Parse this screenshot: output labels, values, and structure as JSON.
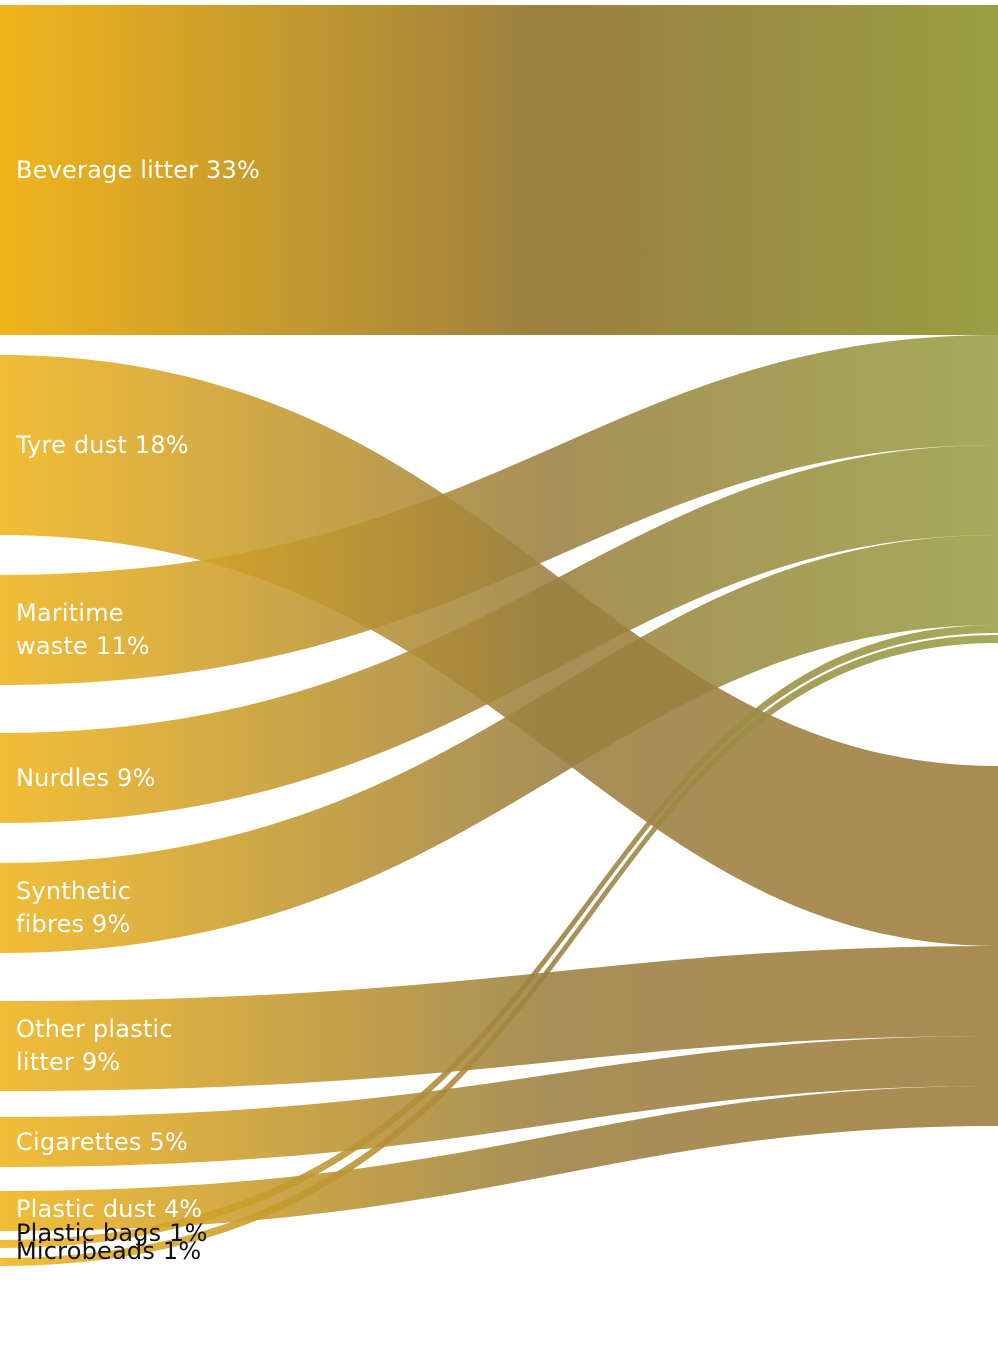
{
  "colors": {
    "source": "#f0b41c",
    "mid": "#9b8040",
    "target_top": "#9a9e44",
    "target_bottom": "#9e7b3a",
    "overlap": "#5a3208"
  },
  "chart_data": {
    "type": "sankey",
    "title": "",
    "unit": "%",
    "sources": [
      {
        "id": "beverage",
        "label": "Beverage litter 33%",
        "value": 33,
        "target": "upper"
      },
      {
        "id": "tyre",
        "label": "Tyre dust 18%",
        "value": 18,
        "target": "lower"
      },
      {
        "id": "maritime",
        "label": "Maritime\nwaste 11%",
        "value": 11,
        "target": "upper"
      },
      {
        "id": "nurdles",
        "label": "Nurdles 9%",
        "value": 9,
        "target": "upper"
      },
      {
        "id": "synthetic",
        "label": "Synthetic\nfibres 9%",
        "value": 9,
        "target": "upper"
      },
      {
        "id": "other",
        "label": "Other plastic\nlitter 9%",
        "value": 9,
        "target": "lower"
      },
      {
        "id": "cigarettes",
        "label": "Cigarettes 5%",
        "value": 5,
        "target": "lower"
      },
      {
        "id": "plastic_dust",
        "label": "Plastic dust 4%",
        "value": 4,
        "target": "lower"
      },
      {
        "id": "plastic_bags",
        "label": "Plastic bags 1%",
        "value": 1,
        "target": "upper"
      },
      {
        "id": "microbeads",
        "label": "Microbeads 1%",
        "value": 1,
        "target": "upper"
      }
    ],
    "targets": [
      {
        "id": "upper",
        "order": [
          "beverage",
          "maritime",
          "nurdles",
          "synthetic",
          "plastic_bags",
          "microbeads"
        ]
      },
      {
        "id": "lower",
        "order": [
          "tyre",
          "other",
          "cigarettes",
          "plastic_dust"
        ]
      }
    ]
  }
}
